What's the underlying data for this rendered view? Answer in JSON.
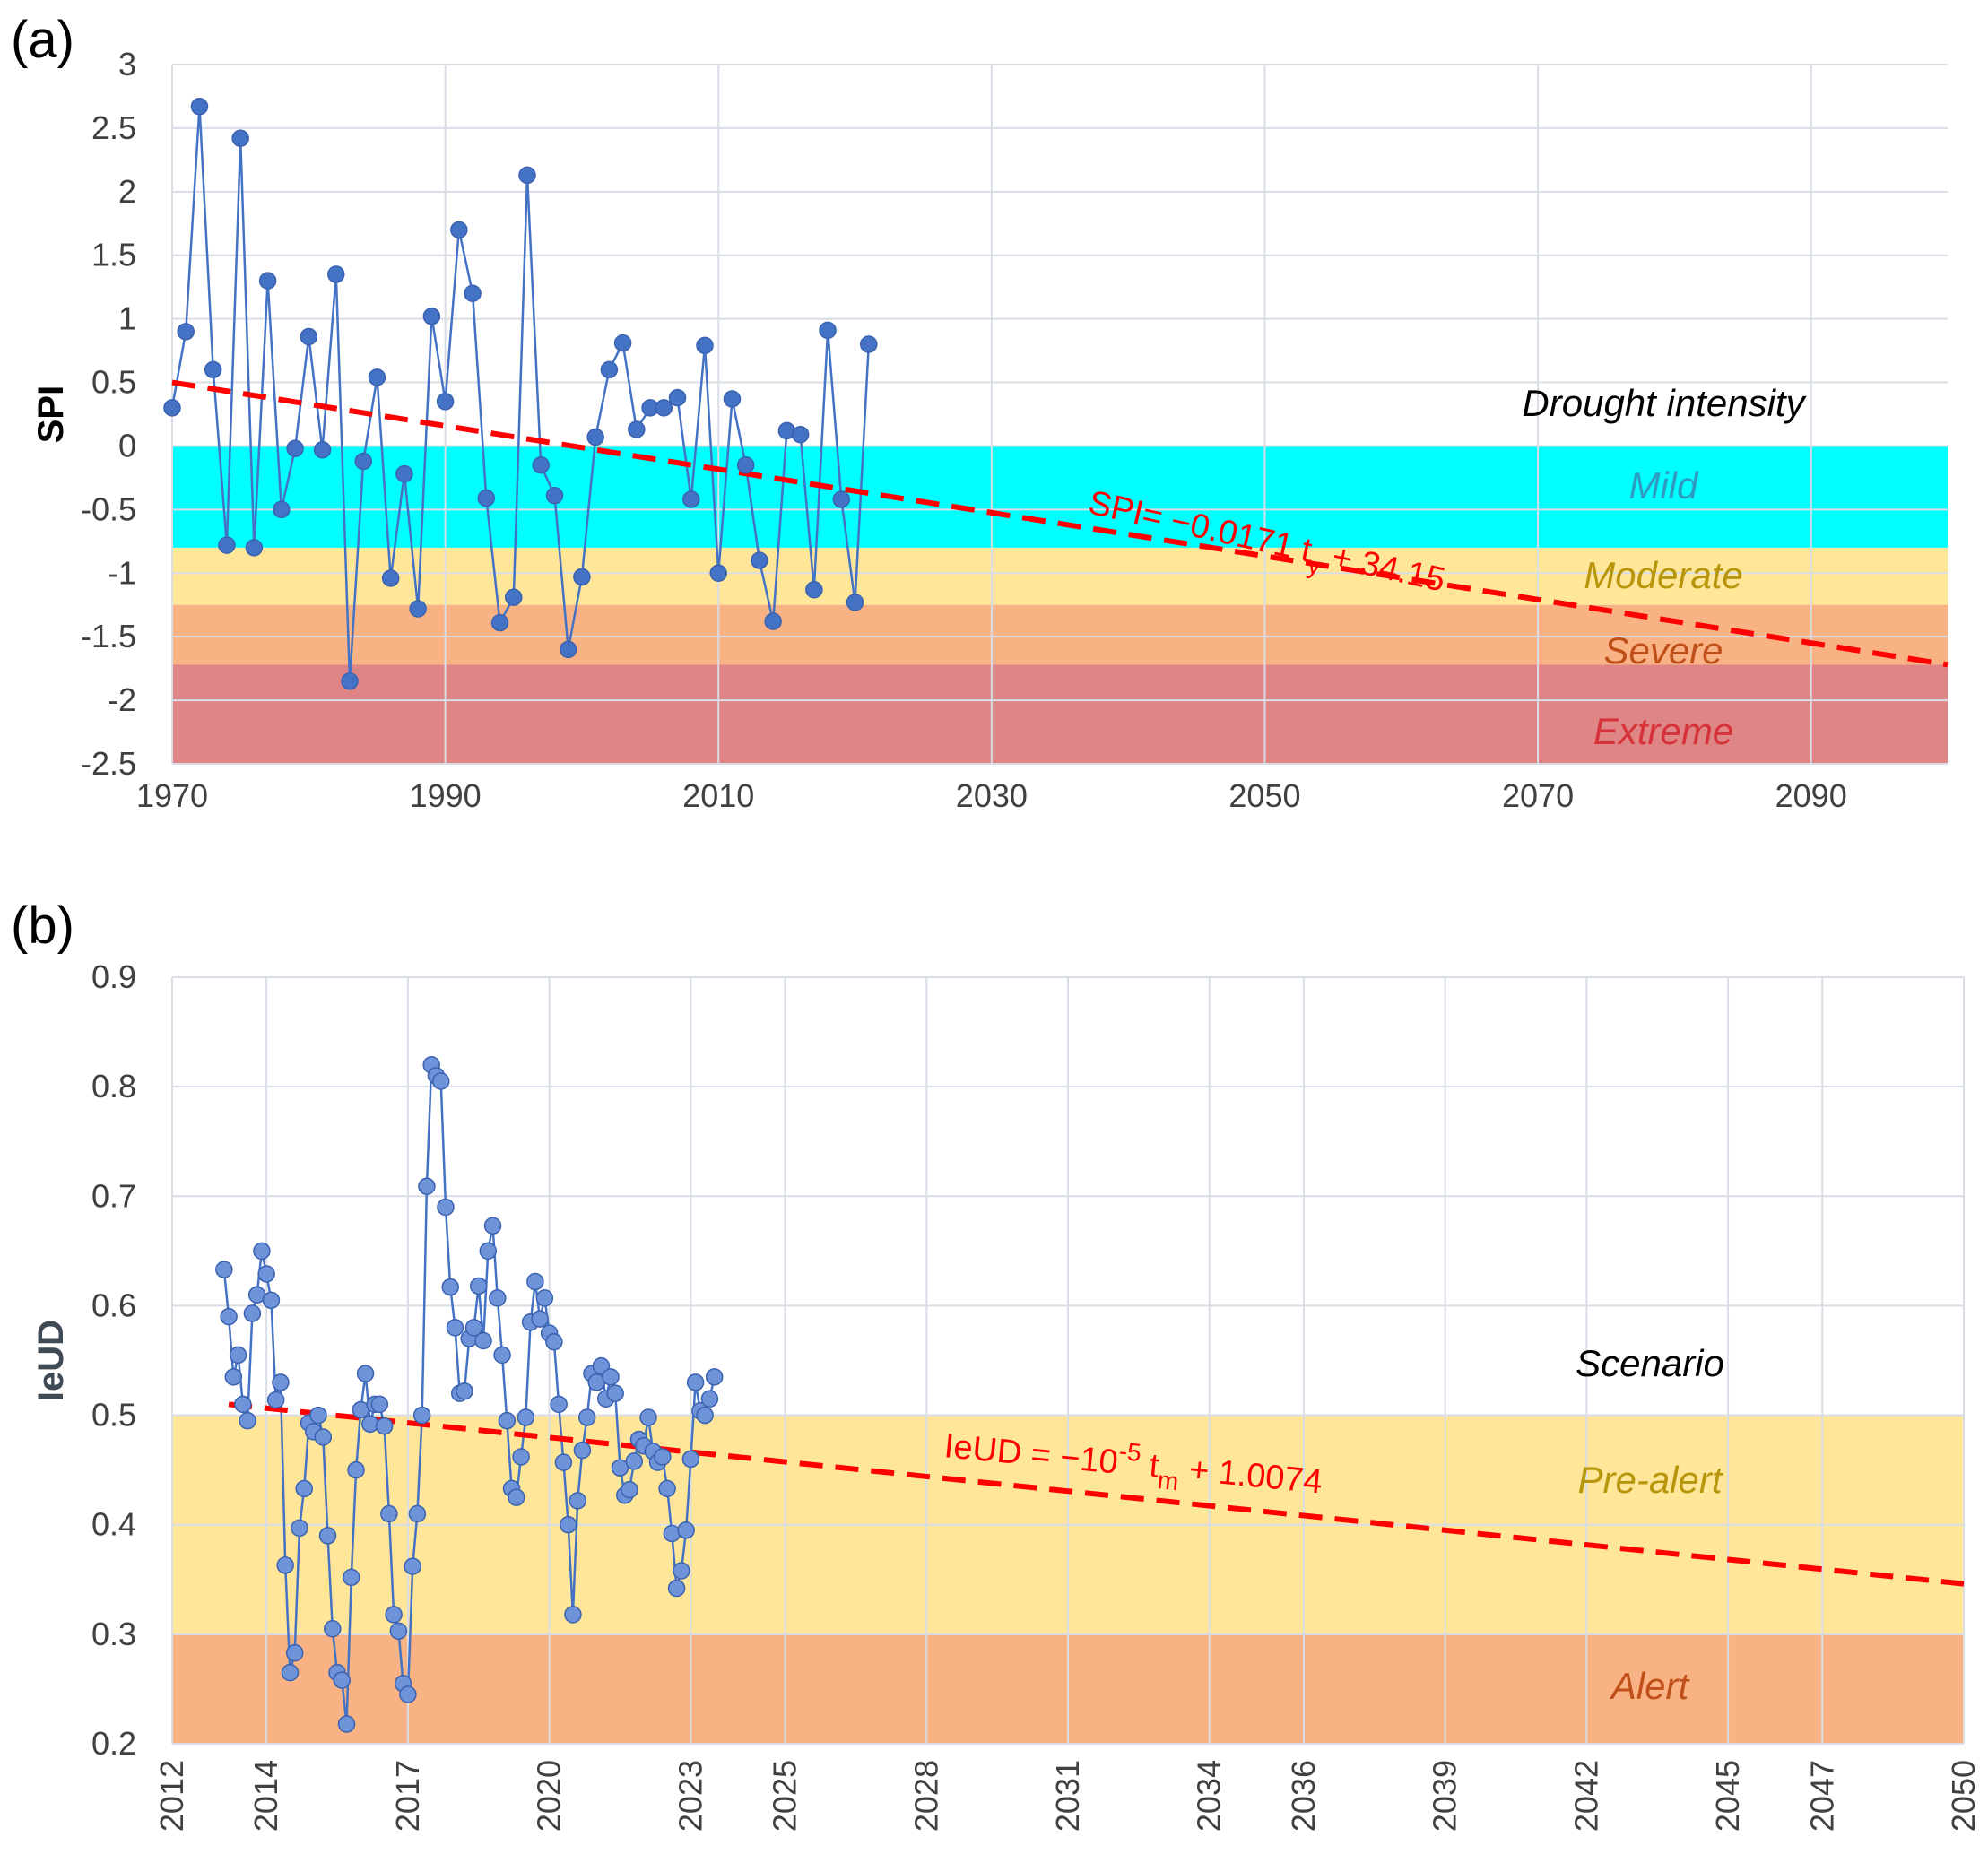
{
  "colors": {
    "series": "#4472c4",
    "trend": "#ff0000",
    "grid": "#d9dde6",
    "mild": "#00ffff",
    "moderate": "#ffe699",
    "severe": "#f8b283",
    "extreme": "#e08585",
    "prealert": "#ffe699",
    "alert": "#f8b283"
  },
  "chart_data": [
    {
      "panel": "(a)",
      "type": "line",
      "ylabel": "SPI",
      "xlabel": "",
      "xlim": [
        1970,
        2100
      ],
      "ylim": [
        -2.5,
        3
      ],
      "x_ticks": [
        "1970",
        "1990",
        "2010",
        "2030",
        "2050",
        "2070",
        "2090"
      ],
      "y_ticks": [
        "3",
        "2.5",
        "2",
        "1.5",
        "1",
        "0.5",
        "0",
        "-0.5",
        "-1",
        "-1.5",
        "-2",
        "-2.5"
      ],
      "legend_title": "Drought intensity",
      "bands": [
        {
          "name": "Mild",
          "from": -0.8,
          "to": 0,
          "color_key": "mild",
          "label_color": "#2e9bc2"
        },
        {
          "name": "Moderate",
          "from": -1.25,
          "to": -0.8,
          "color_key": "moderate",
          "label_color": "#b8960c"
        },
        {
          "name": "Severe",
          "from": -1.72,
          "to": -1.25,
          "color_key": "severe",
          "label_color": "#c0501a"
        },
        {
          "name": "Extreme",
          "from": -2.5,
          "to": -1.72,
          "color_key": "extreme",
          "label_color": "#d6323a"
        }
      ],
      "trend": {
        "equation_prefix": "SPI= −0.0171 t",
        "equation_sub": "y",
        "equation_suffix": " + 34.15",
        "x": [
          1970,
          2100
        ],
        "y": [
          0.5,
          -1.72
        ]
      },
      "series": [
        {
          "name": "SPI",
          "x": [
            1970,
            1971,
            1972,
            1973,
            1974,
            1975,
            1976,
            1977,
            1978,
            1979,
            1980,
            1981,
            1982,
            1983,
            1984,
            1985,
            1986,
            1987,
            1988,
            1989,
            1990,
            1991,
            1992,
            1993,
            1994,
            1995,
            1996,
            1997,
            1998,
            1999,
            2000,
            2001,
            2002,
            2003,
            2004,
            2005,
            2006,
            2007,
            2008,
            2009,
            2010,
            2011,
            2012,
            2013,
            2014,
            2015,
            2016,
            2017,
            2018,
            2019,
            2020,
            2021
          ],
          "values": [
            0.3,
            0.9,
            2.67,
            0.6,
            -0.78,
            2.42,
            -0.8,
            1.3,
            -0.5,
            -0.02,
            0.86,
            -0.03,
            1.35,
            -1.85,
            -0.12,
            0.54,
            -1.04,
            -0.22,
            -1.28,
            1.02,
            0.35,
            1.7,
            1.2,
            -0.41,
            -1.39,
            -1.19,
            2.13,
            -0.15,
            -0.39,
            -1.6,
            -1.03,
            0.07,
            0.6,
            0.81,
            0.13,
            0.3,
            0.3,
            0.38,
            -0.42,
            0.79,
            -1.0,
            0.37,
            -0.15,
            -0.9,
            -1.38,
            0.12,
            0.09,
            -1.13,
            0.91,
            -0.42,
            -1.23,
            0.8
          ]
        }
      ]
    },
    {
      "panel": "(b)",
      "type": "line",
      "ylabel": "IeUD",
      "xlabel": "",
      "xlim": [
        2012,
        2050
      ],
      "ylim": [
        0.2,
        0.9
      ],
      "x_ticks": [
        "2012",
        "2014",
        "2017",
        "2020",
        "2023",
        "2025",
        "2028",
        "2031",
        "2034",
        "2036",
        "2039",
        "2042",
        "2045",
        "2047",
        "2050"
      ],
      "y_ticks": [
        "0.9",
        "0.8",
        "0.7",
        "0.6",
        "0.5",
        "0.4",
        "0.3",
        "0.2"
      ],
      "legend_title": "Scenario",
      "bands": [
        {
          "name": "Pre-alert",
          "from": 0.3,
          "to": 0.5,
          "color_key": "prealert",
          "label_color": "#b8960c"
        },
        {
          "name": "Alert",
          "from": 0.2,
          "to": 0.3,
          "color_key": "alert",
          "label_color": "#c0501a"
        }
      ],
      "trend": {
        "equation_prefix": "IeUD = −10",
        "equation_sup": "-5",
        "equation_mid": " t",
        "equation_sub": "m",
        "equation_suffix": " + 1.0074",
        "x": [
          2013.2,
          2050
        ],
        "y": [
          0.51,
          0.346
        ]
      },
      "series": [
        {
          "name": "IeUD",
          "x": [
            2013.1,
            2013.2,
            2013.3,
            2013.4,
            2013.5,
            2013.6,
            2013.7,
            2013.8,
            2013.9,
            2014.0,
            2014.1,
            2014.2,
            2014.3,
            2014.4,
            2014.5,
            2014.6,
            2014.7,
            2014.8,
            2014.9,
            2015.0,
            2015.1,
            2015.2,
            2015.3,
            2015.4,
            2015.5,
            2015.6,
            2015.7,
            2015.8,
            2015.9,
            2016.0,
            2016.1,
            2016.2,
            2016.3,
            2016.4,
            2016.5,
            2016.6,
            2016.7,
            2016.8,
            2016.9,
            2017.0,
            2017.1,
            2017.2,
            2017.3,
            2017.4,
            2017.5,
            2017.6,
            2017.7,
            2017.8,
            2017.9,
            2018.0,
            2018.1,
            2018.2,
            2018.3,
            2018.4,
            2018.5,
            2018.6,
            2018.7,
            2018.8,
            2018.9,
            2019.0,
            2019.1,
            2019.2,
            2019.3,
            2019.4,
            2019.5,
            2019.6,
            2019.7,
            2019.8,
            2019.9,
            2020.0,
            2020.1,
            2020.2,
            2020.3,
            2020.4,
            2020.5,
            2020.6,
            2020.7,
            2020.8,
            2020.9,
            2021.0,
            2021.1,
            2021.2,
            2021.3,
            2021.4,
            2021.5,
            2021.6,
            2021.7,
            2021.8,
            2021.9,
            2022.0,
            2022.1,
            2022.2,
            2022.3,
            2022.4,
            2022.5,
            2022.6,
            2022.7,
            2022.8,
            2022.9,
            2023.0,
            2023.1,
            2023.2,
            2023.3,
            2023.4,
            2023.5
          ],
          "values": [
            0.633,
            0.59,
            0.535,
            0.555,
            0.51,
            0.495,
            0.593,
            0.61,
            0.65,
            0.629,
            0.605,
            0.514,
            0.53,
            0.363,
            0.265,
            0.283,
            0.397,
            0.433,
            0.493,
            0.485,
            0.5,
            0.48,
            0.39,
            0.305,
            0.265,
            0.258,
            0.218,
            0.352,
            0.45,
            0.505,
            0.538,
            0.492,
            0.51,
            0.51,
            0.49,
            0.41,
            0.318,
            0.303,
            0.255,
            0.245,
            0.362,
            0.41,
            0.5,
            0.709,
            0.82,
            0.81,
            0.805,
            0.69,
            0.617,
            0.58,
            0.52,
            0.522,
            0.57,
            0.58,
            0.618,
            0.568,
            0.65,
            0.673,
            0.607,
            0.555,
            0.495,
            0.433,
            0.425,
            0.462,
            0.498,
            0.585,
            0.622,
            0.588,
            0.607,
            0.575,
            0.567,
            0.51,
            0.457,
            0.4,
            0.318,
            0.422,
            0.468,
            0.498,
            0.538,
            0.53,
            0.545,
            0.515,
            0.535,
            0.52,
            0.452,
            0.427,
            0.432,
            0.458,
            0.478,
            0.472,
            0.498,
            0.467,
            0.457,
            0.462,
            0.433,
            0.392,
            0.342,
            0.358,
            0.395,
            0.46,
            0.53,
            0.504,
            0.5,
            0.515,
            0.535
          ]
        }
      ]
    }
  ]
}
